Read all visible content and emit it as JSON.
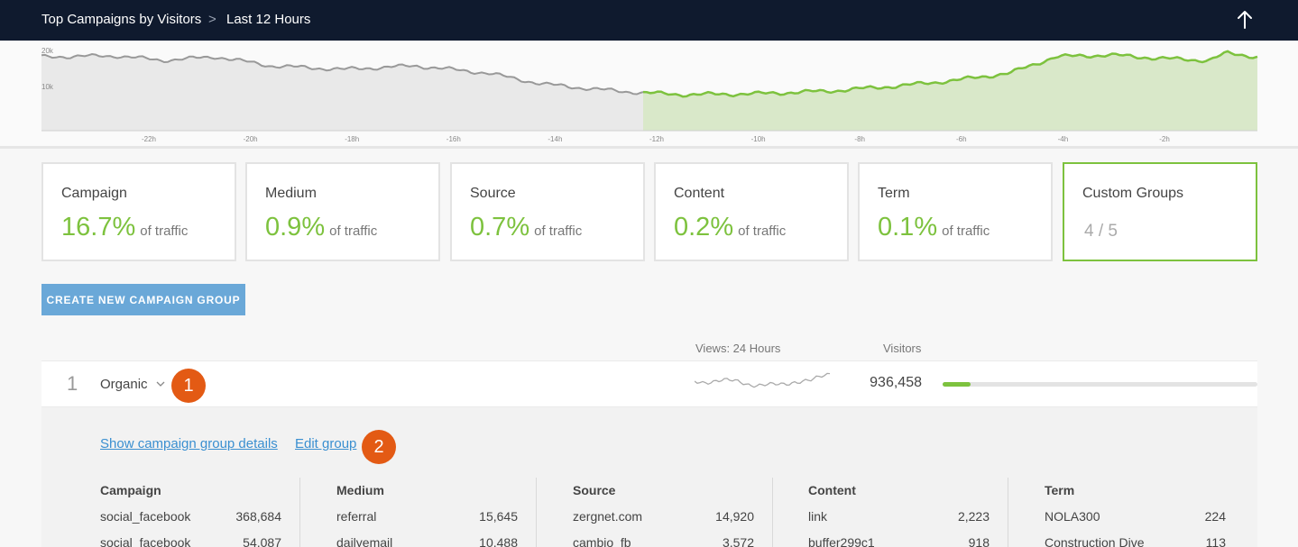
{
  "header": {
    "title": "Top Campaigns by Visitors",
    "separator": ">",
    "range": "Last 12 Hours"
  },
  "timeline": {
    "y_labels": [
      "20k",
      "10k"
    ],
    "x_labels": [
      "-22h",
      "-20h",
      "-18h",
      "-16h",
      "-14h",
      "-12h",
      "-10h",
      "-8h",
      "-6h",
      "-4h",
      "-2h"
    ],
    "colors": {
      "past": "#e9e9e9",
      "past_line": "#999999",
      "current": "#d9e8c9",
      "current_line": "#7dc23e"
    }
  },
  "cards": [
    {
      "label": "Campaign",
      "percent": "16.7%",
      "suffix": "of traffic"
    },
    {
      "label": "Medium",
      "percent": "0.9%",
      "suffix": "of traffic"
    },
    {
      "label": "Source",
      "percent": "0.7%",
      "suffix": "of traffic"
    },
    {
      "label": "Content",
      "percent": "0.2%",
      "suffix": "of traffic"
    },
    {
      "label": "Term",
      "percent": "0.1%",
      "suffix": "of traffic"
    }
  ],
  "custom_card": {
    "label": "Custom Groups",
    "count": "4 / 5"
  },
  "create_button": "CREATE NEW CAMPAIGN GROUP",
  "columns": {
    "views": "Views: 24 Hours",
    "visitors": "Visitors"
  },
  "row": {
    "rank": "1",
    "name": "Organic",
    "visitors": "936,458",
    "share": 0.09
  },
  "badges": [
    "1",
    "2"
  ],
  "details": {
    "show_details": "Show campaign group details",
    "edit_group": "Edit group",
    "dimensions": [
      {
        "title": "Campaign",
        "rows": [
          {
            "name": "social_facebook",
            "value": "368,684"
          },
          {
            "name": "social_facebook",
            "value": "54,087"
          }
        ]
      },
      {
        "title": "Medium",
        "rows": [
          {
            "name": "referral",
            "value": "15,645"
          },
          {
            "name": "dailyemail",
            "value": "10,488"
          }
        ]
      },
      {
        "title": "Source",
        "rows": [
          {
            "name": "zergnet.com",
            "value": "14,920"
          },
          {
            "name": "cambio_fb",
            "value": "3,572"
          }
        ]
      },
      {
        "title": "Content",
        "rows": [
          {
            "name": "link",
            "value": "2,223"
          },
          {
            "name": "buffer299c1",
            "value": "918"
          }
        ]
      },
      {
        "title": "Term",
        "rows": [
          {
            "name": "NOLA300",
            "value": "224"
          },
          {
            "name": "Construction Dive",
            "value": "113"
          }
        ]
      }
    ]
  },
  "colors": {
    "accent_green": "#7dc23e",
    "button_blue": "#6aa8d8",
    "badge_orange": "#e35a14",
    "link_blue": "#3a8fd0",
    "nav_dark": "#0f1a2e"
  }
}
